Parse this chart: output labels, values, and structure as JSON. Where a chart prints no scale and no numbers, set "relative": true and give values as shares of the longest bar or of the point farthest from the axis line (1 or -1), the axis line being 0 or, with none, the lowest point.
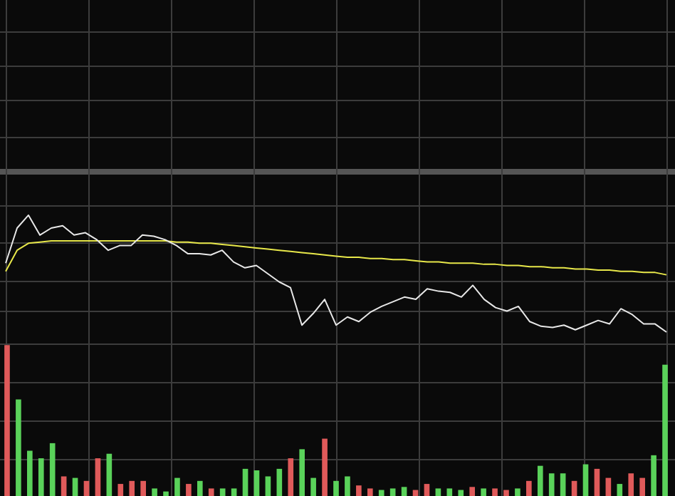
{
  "chart_data": [
    {
      "type": "line",
      "relative": true,
      "grid": true,
      "legend": false,
      "marker": "none",
      "categories": [
        null,
        null,
        null,
        null,
        null,
        null,
        null,
        null,
        null,
        null,
        null,
        null,
        null,
        null,
        null,
        null,
        null,
        null,
        null,
        null,
        null,
        null,
        null,
        null,
        null,
        null,
        null,
        null,
        null,
        null,
        null,
        null,
        null,
        null,
        null,
        null,
        null,
        null,
        null,
        null,
        null,
        null,
        null,
        null,
        null,
        null,
        null,
        null,
        null,
        null,
        null,
        null,
        null,
        null,
        null,
        null,
        null,
        null,
        null
      ],
      "series": [
        {
          "color": "#e8e8e8",
          "values": [
            0.59,
            0.89,
            1,
            0.83,
            0.89,
            0.91,
            0.83,
            0.85,
            0.79,
            0.7,
            0.74,
            0.74,
            0.83,
            0.82,
            0.79,
            0.74,
            0.67,
            0.67,
            0.66,
            0.7,
            0.6,
            0.55,
            0.57,
            0.5,
            0.43,
            0.38,
            0.06,
            0.16,
            0.28,
            0.06,
            0.13,
            0.09,
            0.17,
            0.22,
            0.26,
            0.3,
            0.28,
            0.37,
            0.35,
            0.34,
            0.3,
            0.4,
            0.28,
            0.21,
            0.18,
            0.22,
            0.09,
            0.05,
            0.04,
            0.06,
            0.02,
            0.06,
            0.1,
            0.07,
            0.2,
            0.15,
            0.07,
            0.07,
            0
          ]
        },
        {
          "color": "#e8e84a",
          "values": [
            0.52,
            0.7,
            0.76,
            0.77,
            0.78,
            0.78,
            0.78,
            0.78,
            0.78,
            0.78,
            0.78,
            0.78,
            0.78,
            0.78,
            0.78,
            0.77,
            0.77,
            0.76,
            0.76,
            0.75,
            0.74,
            0.73,
            0.72,
            0.71,
            0.7,
            0.69,
            0.68,
            0.67,
            0.66,
            0.65,
            0.64,
            0.64,
            0.63,
            0.63,
            0.62,
            0.62,
            0.61,
            0.6,
            0.6,
            0.59,
            0.59,
            0.59,
            0.58,
            0.58,
            0.57,
            0.57,
            0.56,
            0.56,
            0.55,
            0.55,
            0.54,
            0.54,
            0.53,
            0.53,
            0.52,
            0.52,
            0.51,
            0.51,
            0.49
          ]
        }
      ]
    },
    {
      "type": "bar",
      "relative": true,
      "grid": true,
      "legend": false,
      "categories": [
        null,
        null,
        null,
        null,
        null,
        null,
        null,
        null,
        null,
        null,
        null,
        null,
        null,
        null,
        null,
        null,
        null,
        null,
        null,
        null,
        null,
        null,
        null,
        null,
        null,
        null,
        null,
        null,
        null,
        null,
        null,
        null,
        null,
        null,
        null,
        null,
        null,
        null,
        null,
        null,
        null,
        null,
        null,
        null,
        null,
        null,
        null,
        null,
        null,
        null,
        null,
        null,
        null,
        null,
        null,
        null,
        null,
        null,
        null
      ],
      "values": [
        1,
        0.64,
        0.3,
        0.25,
        0.35,
        0.13,
        0.12,
        0.1,
        0.25,
        0.28,
        0.08,
        0.1,
        0.1,
        0.05,
        0.03,
        0.12,
        0.08,
        0.1,
        0.05,
        0.05,
        0.05,
        0.18,
        0.17,
        0.13,
        0.18,
        0.25,
        0.31,
        0.12,
        0.38,
        0.1,
        0.13,
        0.07,
        0.05,
        0.04,
        0.05,
        0.06,
        0.04,
        0.08,
        0.05,
        0.05,
        0.04,
        0.06,
        0.05,
        0.05,
        0.04,
        0.05,
        0.1,
        0.2,
        0.15,
        0.15,
        0.1,
        0.21,
        0.18,
        0.12,
        0.08,
        0.15,
        0.12,
        0.27,
        0.87
      ],
      "colors": [
        "#e05a5a",
        "#5ad25a",
        "#5ad25a",
        "#5ad25a",
        "#5ad25a",
        "#e05a5a",
        "#5ad25a",
        "#e05a5a",
        "#e05a5a",
        "#5ad25a",
        "#e05a5a",
        "#e05a5a",
        "#e05a5a",
        "#5ad25a",
        "#5ad25a",
        "#5ad25a",
        "#e05a5a",
        "#5ad25a",
        "#e05a5a",
        "#5ad25a",
        "#5ad25a",
        "#5ad25a",
        "#5ad25a",
        "#5ad25a",
        "#5ad25a",
        "#e05a5a",
        "#5ad25a",
        "#5ad25a",
        "#e05a5a",
        "#5ad25a",
        "#5ad25a",
        "#e05a5a",
        "#e05a5a",
        "#5ad25a",
        "#5ad25a",
        "#5ad25a",
        "#e05a5a",
        "#e05a5a",
        "#5ad25a",
        "#5ad25a",
        "#5ad25a",
        "#e05a5a",
        "#5ad25a",
        "#e05a5a",
        "#e05a5a",
        "#5ad25a",
        "#e05a5a",
        "#5ad25a",
        "#5ad25a",
        "#5ad25a",
        "#e05a5a",
        "#5ad25a",
        "#e05a5a",
        "#e05a5a",
        "#5ad25a",
        "#e05a5a",
        "#e05a5a",
        "#5ad25a",
        "#5ad25a"
      ]
    }
  ]
}
